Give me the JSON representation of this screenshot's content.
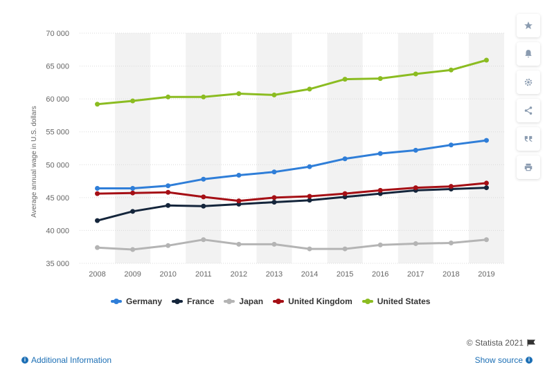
{
  "chart_data": {
    "type": "line",
    "title": "",
    "xlabel": "",
    "ylabel": "Average annual wage in U.S. dollars",
    "ylim": [
      35000,
      70000
    ],
    "yticks": [
      35000,
      40000,
      45000,
      50000,
      55000,
      60000,
      65000,
      70000
    ],
    "ytick_labels": [
      "35 000",
      "40 000",
      "45 000",
      "50 000",
      "55 000",
      "60 000",
      "65 000",
      "70 000"
    ],
    "categories": [
      "2008",
      "2009",
      "2010",
      "2011",
      "2012",
      "2013",
      "2014",
      "2015",
      "2016",
      "2017",
      "2018",
      "2019"
    ],
    "series": [
      {
        "name": "Germany",
        "color": "#2f7ed8",
        "values": [
          46400,
          46400,
          46800,
          47800,
          48400,
          48900,
          49700,
          50900,
          51700,
          52200,
          53000,
          53700
        ]
      },
      {
        "name": "France",
        "color": "#14253b",
        "values": [
          41500,
          42900,
          43800,
          43700,
          44000,
          44300,
          44600,
          45100,
          45600,
          46100,
          46300,
          46500
        ]
      },
      {
        "name": "Japan",
        "color": "#b4b4b4",
        "values": [
          37400,
          37100,
          37700,
          38600,
          37900,
          37900,
          37200,
          37200,
          37800,
          38000,
          38100,
          38600
        ]
      },
      {
        "name": "United Kingdom",
        "color": "#a50f15",
        "values": [
          45600,
          45700,
          45800,
          45100,
          44500,
          45000,
          45200,
          45600,
          46100,
          46500,
          46700,
          47200
        ]
      },
      {
        "name": "United States",
        "color": "#8bbc21",
        "values": [
          59200,
          59700,
          60300,
          60300,
          60800,
          60600,
          61500,
          63000,
          63100,
          63800,
          64400,
          65900
        ]
      }
    ]
  },
  "toolbar": {
    "icons": [
      "star-icon",
      "bell-icon",
      "gear-icon",
      "share-icon",
      "quote-icon",
      "print-icon"
    ]
  },
  "footer": {
    "credit": "© Statista 2021",
    "additional_info": "Additional Information",
    "show_source": "Show source"
  }
}
